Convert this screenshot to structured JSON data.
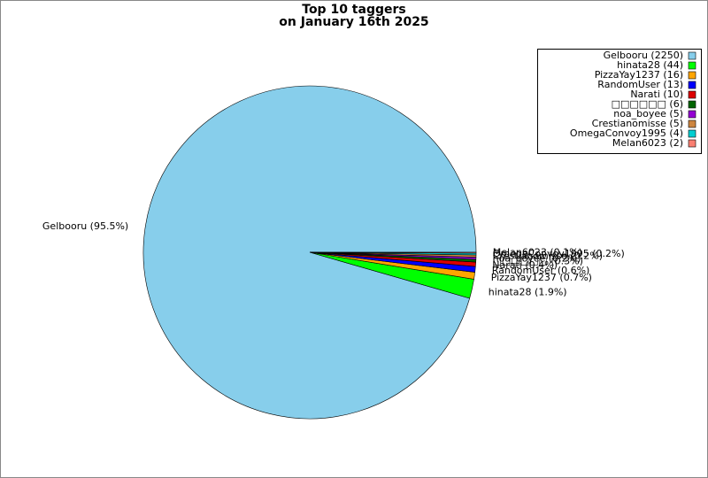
{
  "chart_data": {
    "type": "pie",
    "title_lines": [
      "Top 10 taggers",
      "on January 16th 2025"
    ],
    "values": [
      2250,
      44,
      16,
      13,
      10,
      6,
      5,
      5,
      4,
      2
    ],
    "legend_labels": [
      "Gelbooru (2250)",
      "hinata28 (44)",
      "PizzaYay1237 (16)",
      "RandomUser (13)",
      "Narati (10)",
      "□□□□□□ (6)",
      "noa_boyee (5)",
      "Crestianomisse (5)",
      "OmegaConvoy1995 (4)",
      "Melan6023 (2)"
    ],
    "value_labels": [
      "Gelbooru (95.5%)",
      "hinata28 (1.9%)",
      "PizzaYay1237 (0.7%)",
      "RandomUser (0.6%)",
      "Narati (0.4%)",
      "□□□□□□ (0.3%)",
      "noa_boyee (0.2%)",
      "Crestianomisse (0.2%)",
      "OmegaConvoy1995 (0.2%)",
      "Melan6023 (0.1%)"
    ],
    "colors": [
      "#87ceeb",
      "#00ff00",
      "#ffa500",
      "#0000ff",
      "#dd0000",
      "#006400",
      "#9400d3",
      "#cd853f",
      "#00ced1",
      "#fa8072"
    ],
    "legend": "upper right"
  }
}
